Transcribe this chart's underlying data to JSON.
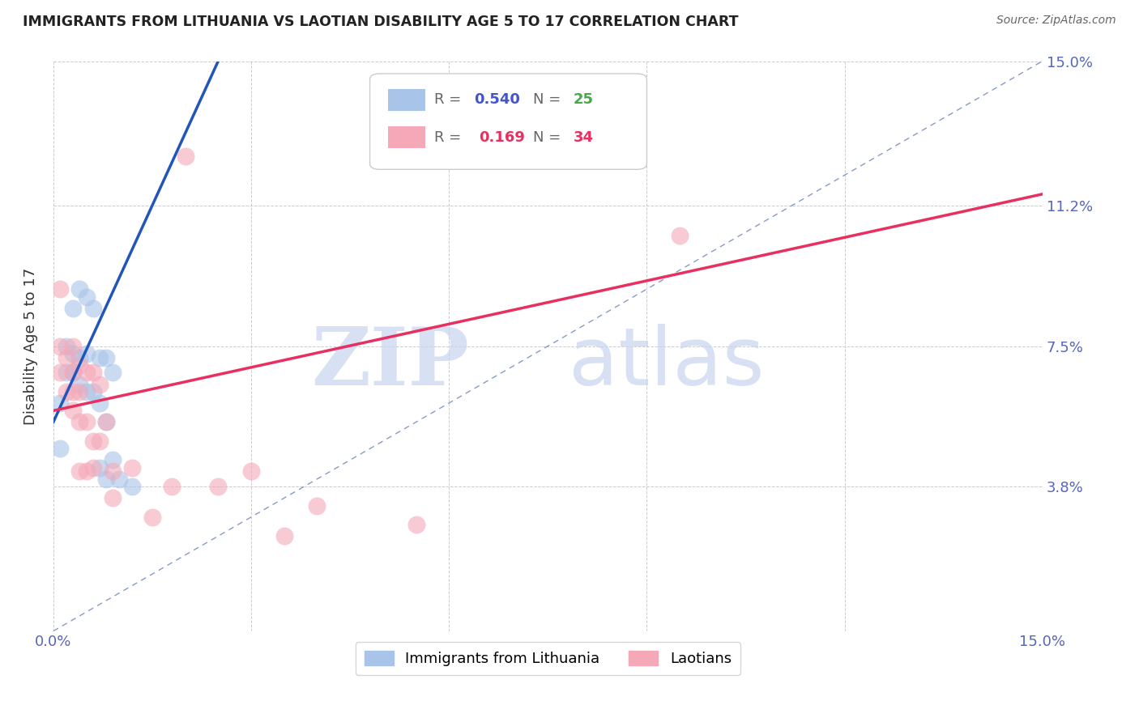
{
  "title": "IMMIGRANTS FROM LITHUANIA VS LAOTIAN DISABILITY AGE 5 TO 17 CORRELATION CHART",
  "source": "Source: ZipAtlas.com",
  "ylabel": "Disability Age 5 to 17",
  "xlim": [
    0.0,
    0.15
  ],
  "ylim": [
    0.0,
    0.15
  ],
  "xtick_values": [
    0.0,
    0.03,
    0.06,
    0.09,
    0.12,
    0.15
  ],
  "xticklabels": [
    "0.0%",
    "",
    "",
    "",
    "",
    "15.0%"
  ],
  "ytick_values": [
    0.038,
    0.075,
    0.112,
    0.15
  ],
  "ytick_labels": [
    "3.8%",
    "7.5%",
    "11.2%",
    "15.0%"
  ],
  "color_blue": "#a8c4e8",
  "color_pink": "#f4a8b8",
  "line_blue": "#2255bb",
  "line_pink": "#e83060",
  "diag_line_color": "#99aacc",
  "background_color": "#ffffff",
  "grid_color": "#cccccc",
  "scatter_blue": [
    [
      0.001,
      0.06
    ],
    [
      0.001,
      0.048
    ],
    [
      0.002,
      0.075
    ],
    [
      0.002,
      0.068
    ],
    [
      0.003,
      0.085
    ],
    [
      0.003,
      0.073
    ],
    [
      0.003,
      0.068
    ],
    [
      0.004,
      0.09
    ],
    [
      0.004,
      0.072
    ],
    [
      0.004,
      0.065
    ],
    [
      0.005,
      0.088
    ],
    [
      0.005,
      0.073
    ],
    [
      0.005,
      0.063
    ],
    [
      0.006,
      0.085
    ],
    [
      0.006,
      0.063
    ],
    [
      0.007,
      0.072
    ],
    [
      0.007,
      0.06
    ],
    [
      0.007,
      0.043
    ],
    [
      0.008,
      0.072
    ],
    [
      0.008,
      0.055
    ],
    [
      0.008,
      0.04
    ],
    [
      0.009,
      0.068
    ],
    [
      0.009,
      0.045
    ],
    [
      0.01,
      0.04
    ],
    [
      0.012,
      0.038
    ]
  ],
  "scatter_pink": [
    [
      0.001,
      0.09
    ],
    [
      0.001,
      0.075
    ],
    [
      0.001,
      0.068
    ],
    [
      0.002,
      0.072
    ],
    [
      0.002,
      0.063
    ],
    [
      0.003,
      0.075
    ],
    [
      0.003,
      0.068
    ],
    [
      0.003,
      0.063
    ],
    [
      0.003,
      0.058
    ],
    [
      0.004,
      0.07
    ],
    [
      0.004,
      0.063
    ],
    [
      0.004,
      0.055
    ],
    [
      0.004,
      0.042
    ],
    [
      0.005,
      0.068
    ],
    [
      0.005,
      0.055
    ],
    [
      0.005,
      0.042
    ],
    [
      0.006,
      0.068
    ],
    [
      0.006,
      0.05
    ],
    [
      0.006,
      0.043
    ],
    [
      0.007,
      0.065
    ],
    [
      0.007,
      0.05
    ],
    [
      0.008,
      0.055
    ],
    [
      0.009,
      0.042
    ],
    [
      0.009,
      0.035
    ],
    [
      0.012,
      0.043
    ],
    [
      0.015,
      0.03
    ],
    [
      0.018,
      0.038
    ],
    [
      0.02,
      0.125
    ],
    [
      0.025,
      0.038
    ],
    [
      0.03,
      0.042
    ],
    [
      0.035,
      0.025
    ],
    [
      0.04,
      0.033
    ],
    [
      0.055,
      0.028
    ],
    [
      0.095,
      0.104
    ]
  ],
  "reg_blue_m": 3.8,
  "reg_blue_b": 0.055,
  "reg_pink_m": 0.38,
  "reg_pink_b": 0.058
}
